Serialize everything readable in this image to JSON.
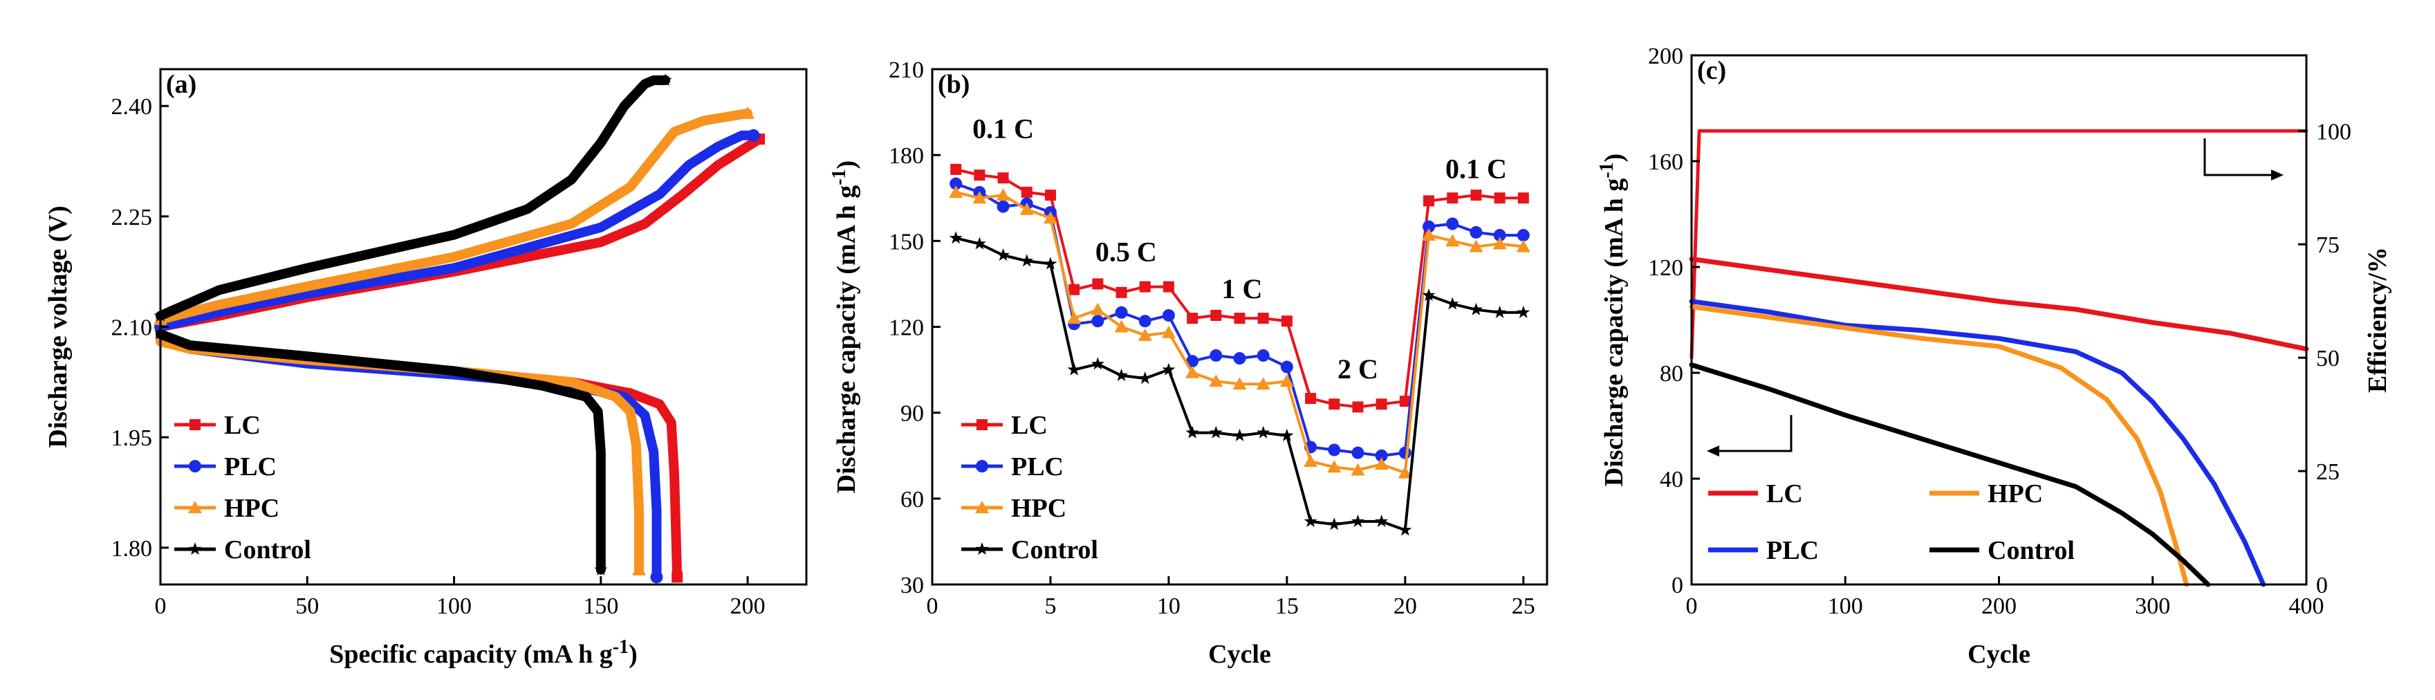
{
  "colors": {
    "LC": "#e8141c",
    "PLC": "#1a2ce8",
    "HPC": "#f7931e",
    "Control": "#000000"
  },
  "chart_data": [
    {
      "panel": "(a)",
      "type": "line",
      "xlabel": "Specific capacity (mA h g",
      "xlabel_sup": "-1",
      "xlabel_end": ")",
      "ylabel": "Discharge voltage (V)",
      "xlim": [
        0,
        220
      ],
      "ylim": [
        1.75,
        2.45
      ],
      "xticks": [
        0,
        50,
        100,
        150,
        200
      ],
      "xtick_labels": [
        "0",
        "50",
        "100",
        "150",
        "200"
      ],
      "yticks": [
        1.8,
        1.95,
        2.1,
        2.25,
        2.4
      ],
      "ytick_labels": [
        "1.80",
        "1.95",
        "2.10",
        "2.25",
        "2.40"
      ],
      "legend": [
        "LC",
        "PLC",
        "HPC",
        "Control"
      ],
      "series": [
        {
          "name": "LC",
          "charge": [
            [
              0,
              2.1
            ],
            [
              20,
              2.115
            ],
            [
              50,
              2.14
            ],
            [
              100,
              2.175
            ],
            [
              150,
              2.215
            ],
            [
              165,
              2.24
            ],
            [
              178,
              2.28
            ],
            [
              190,
              2.32
            ],
            [
              200,
              2.345
            ],
            [
              204,
              2.355
            ]
          ],
          "discharge": [
            [
              0,
              2.085
            ],
            [
              10,
              2.07
            ],
            [
              50,
              2.055
            ],
            [
              100,
              2.04
            ],
            [
              140,
              2.025
            ],
            [
              160,
              2.01
            ],
            [
              170,
              1.995
            ],
            [
              174,
              1.97
            ],
            [
              175,
              1.9
            ],
            [
              176,
              1.76
            ]
          ]
        },
        {
          "name": "PLC",
          "charge": [
            [
              0,
              2.1
            ],
            [
              20,
              2.12
            ],
            [
              50,
              2.145
            ],
            [
              100,
              2.18
            ],
            [
              150,
              2.235
            ],
            [
              170,
              2.28
            ],
            [
              180,
              2.32
            ],
            [
              190,
              2.345
            ],
            [
              198,
              2.36
            ],
            [
              202,
              2.36
            ]
          ],
          "discharge": [
            [
              0,
              2.085
            ],
            [
              10,
              2.07
            ],
            [
              50,
              2.05
            ],
            [
              100,
              2.035
            ],
            [
              140,
              2.02
            ],
            [
              158,
              2.005
            ],
            [
              165,
              1.98
            ],
            [
              168,
              1.93
            ],
            [
              169,
              1.85
            ],
            [
              169,
              1.76
            ]
          ]
        },
        {
          "name": "HPC",
          "charge": [
            [
              0,
              2.11
            ],
            [
              20,
              2.13
            ],
            [
              50,
              2.155
            ],
            [
              100,
              2.195
            ],
            [
              140,
              2.24
            ],
            [
              160,
              2.29
            ],
            [
              168,
              2.33
            ],
            [
              175,
              2.365
            ],
            [
              185,
              2.38
            ],
            [
              200,
              2.39
            ]
          ],
          "discharge": [
            [
              0,
              2.08
            ],
            [
              10,
              2.07
            ],
            [
              50,
              2.055
            ],
            [
              100,
              2.04
            ],
            [
              140,
              2.025
            ],
            [
              155,
              2.005
            ],
            [
              160,
              1.985
            ],
            [
              162,
              1.94
            ],
            [
              163,
              1.85
            ],
            [
              163,
              1.77
            ]
          ]
        },
        {
          "name": "Control",
          "charge": [
            [
              0,
              2.115
            ],
            [
              20,
              2.15
            ],
            [
              50,
              2.18
            ],
            [
              100,
              2.225
            ],
            [
              125,
              2.26
            ],
            [
              140,
              2.3
            ],
            [
              150,
              2.35
            ],
            [
              158,
              2.4
            ],
            [
              165,
              2.43
            ],
            [
              168,
              2.435
            ],
            [
              172,
              2.435
            ]
          ],
          "discharge": [
            [
              0,
              2.09
            ],
            [
              10,
              2.075
            ],
            [
              50,
              2.06
            ],
            [
              100,
              2.04
            ],
            [
              130,
              2.02
            ],
            [
              145,
              2.005
            ],
            [
              149,
              1.985
            ],
            [
              150,
              1.93
            ],
            [
              150,
              1.85
            ],
            [
              150,
              1.77
            ]
          ]
        }
      ]
    },
    {
      "panel": "(b)",
      "type": "line",
      "xlabel": "Cycle",
      "ylabel": "Discharge capacity (mA h g",
      "ylabel_sup": "-1",
      "ylabel_end": ")",
      "xlim": [
        0,
        26
      ],
      "ylim": [
        30,
        210
      ],
      "xticks": [
        0,
        5,
        10,
        15,
        20,
        25
      ],
      "xtick_labels": [
        "0",
        "5",
        "10",
        "15",
        "20",
        "25"
      ],
      "yticks": [
        30,
        60,
        90,
        120,
        150,
        180,
        210
      ],
      "ytick_labels": [
        "30",
        "60",
        "90",
        "120",
        "150",
        "180",
        "210"
      ],
      "legend": [
        "LC",
        "PLC",
        "HPC",
        "Control"
      ],
      "annotations": [
        {
          "text": "0.1 C",
          "x": 3.0,
          "y": 186
        },
        {
          "text": "0.5 C",
          "x": 8.2,
          "y": 143
        },
        {
          "text": "1 C",
          "x": 13.1,
          "y": 130
        },
        {
          "text": "2 C",
          "x": 18.0,
          "y": 102
        },
        {
          "text": "0.1 C",
          "x": 23.0,
          "y": 172
        }
      ],
      "x": [
        1,
        2,
        3,
        4,
        5,
        6,
        7,
        8,
        9,
        10,
        11,
        12,
        13,
        14,
        15,
        16,
        17,
        18,
        19,
        20,
        21,
        22,
        23,
        24,
        25
      ],
      "series": [
        {
          "name": "LC",
          "values": [
            175,
            173,
            172,
            167,
            166,
            133,
            135,
            132,
            134,
            134,
            123,
            124,
            123,
            123,
            122,
            95,
            93,
            92,
            93,
            94,
            164,
            165,
            166,
            165,
            165
          ]
        },
        {
          "name": "PLC",
          "values": [
            170,
            167,
            162,
            163,
            160,
            121,
            122,
            125,
            122,
            124,
            108,
            110,
            109,
            110,
            106,
            78,
            77,
            76,
            75,
            76,
            155,
            156,
            153,
            152,
            152
          ]
        },
        {
          "name": "HPC",
          "values": [
            167,
            165,
            166,
            161,
            158,
            123,
            126,
            120,
            117,
            118,
            104,
            101,
            100,
            100,
            101,
            73,
            71,
            70,
            72,
            69,
            152,
            150,
            148,
            149,
            148
          ]
        },
        {
          "name": "Control",
          "values": [
            151,
            149,
            145,
            143,
            142,
            105,
            107,
            103,
            102,
            105,
            83,
            83,
            82,
            83,
            82,
            52,
            51,
            52,
            52,
            49,
            131,
            128,
            126,
            125,
            125
          ]
        }
      ]
    },
    {
      "panel": "(c)",
      "type": "line",
      "xlabel": "Cycle",
      "ylabel": "Discharge capacity (mA h g",
      "ylabel_sup": "-1",
      "ylabel_end": ")",
      "ylabel_right": "Efficiency/%",
      "xlim": [
        0,
        400
      ],
      "ylim": [
        0,
        200
      ],
      "ylim_right": [
        0,
        116.67
      ],
      "xticks": [
        0,
        100,
        200,
        300,
        400
      ],
      "xtick_labels": [
        "0",
        "100",
        "200",
        "300",
        "400"
      ],
      "yticks": [
        0,
        40,
        80,
        120,
        160,
        200
      ],
      "ytick_labels": [
        "0",
        "40",
        "80",
        "120",
        "160",
        "200"
      ],
      "yticks_right": [
        0,
        25,
        50,
        75,
        100
      ],
      "ytick_labels_right": [
        "0",
        "25",
        "50",
        "75",
        "100"
      ],
      "legend": [
        "LC",
        "HPC",
        "PLC",
        "Control"
      ],
      "efficiency": {
        "name": "LC",
        "points": [
          [
            0,
            50
          ],
          [
            5,
            100
          ],
          [
            400,
            100
          ]
        ]
      },
      "series": [
        {
          "name": "LC",
          "points": [
            [
              0,
              123
            ],
            [
              50,
              119
            ],
            [
              100,
              115
            ],
            [
              150,
              111
            ],
            [
              200,
              107
            ],
            [
              250,
              104
            ],
            [
              300,
              99
            ],
            [
              350,
              95
            ],
            [
              400,
              89
            ]
          ]
        },
        {
          "name": "PLC",
          "points": [
            [
              0,
              107
            ],
            [
              50,
              103
            ],
            [
              100,
              98
            ],
            [
              150,
              96
            ],
            [
              200,
              93
            ],
            [
              250,
              88
            ],
            [
              280,
              80
            ],
            [
              300,
              69
            ],
            [
              320,
              55
            ],
            [
              340,
              38
            ],
            [
              360,
              16
            ],
            [
              372,
              0
            ]
          ]
        },
        {
          "name": "HPC",
          "points": [
            [
              0,
              105
            ],
            [
              50,
              101
            ],
            [
              100,
              97
            ],
            [
              150,
              93
            ],
            [
              200,
              90
            ],
            [
              240,
              82
            ],
            [
              270,
              70
            ],
            [
              290,
              55
            ],
            [
              305,
              35
            ],
            [
              315,
              15
            ],
            [
              322,
              0
            ]
          ]
        },
        {
          "name": "Control",
          "points": [
            [
              0,
              83
            ],
            [
              50,
              74
            ],
            [
              100,
              64
            ],
            [
              150,
              55
            ],
            [
              200,
              46
            ],
            [
              250,
              37
            ],
            [
              280,
              27
            ],
            [
              300,
              19
            ],
            [
              320,
              9
            ],
            [
              336,
              0
            ]
          ]
        }
      ]
    }
  ]
}
